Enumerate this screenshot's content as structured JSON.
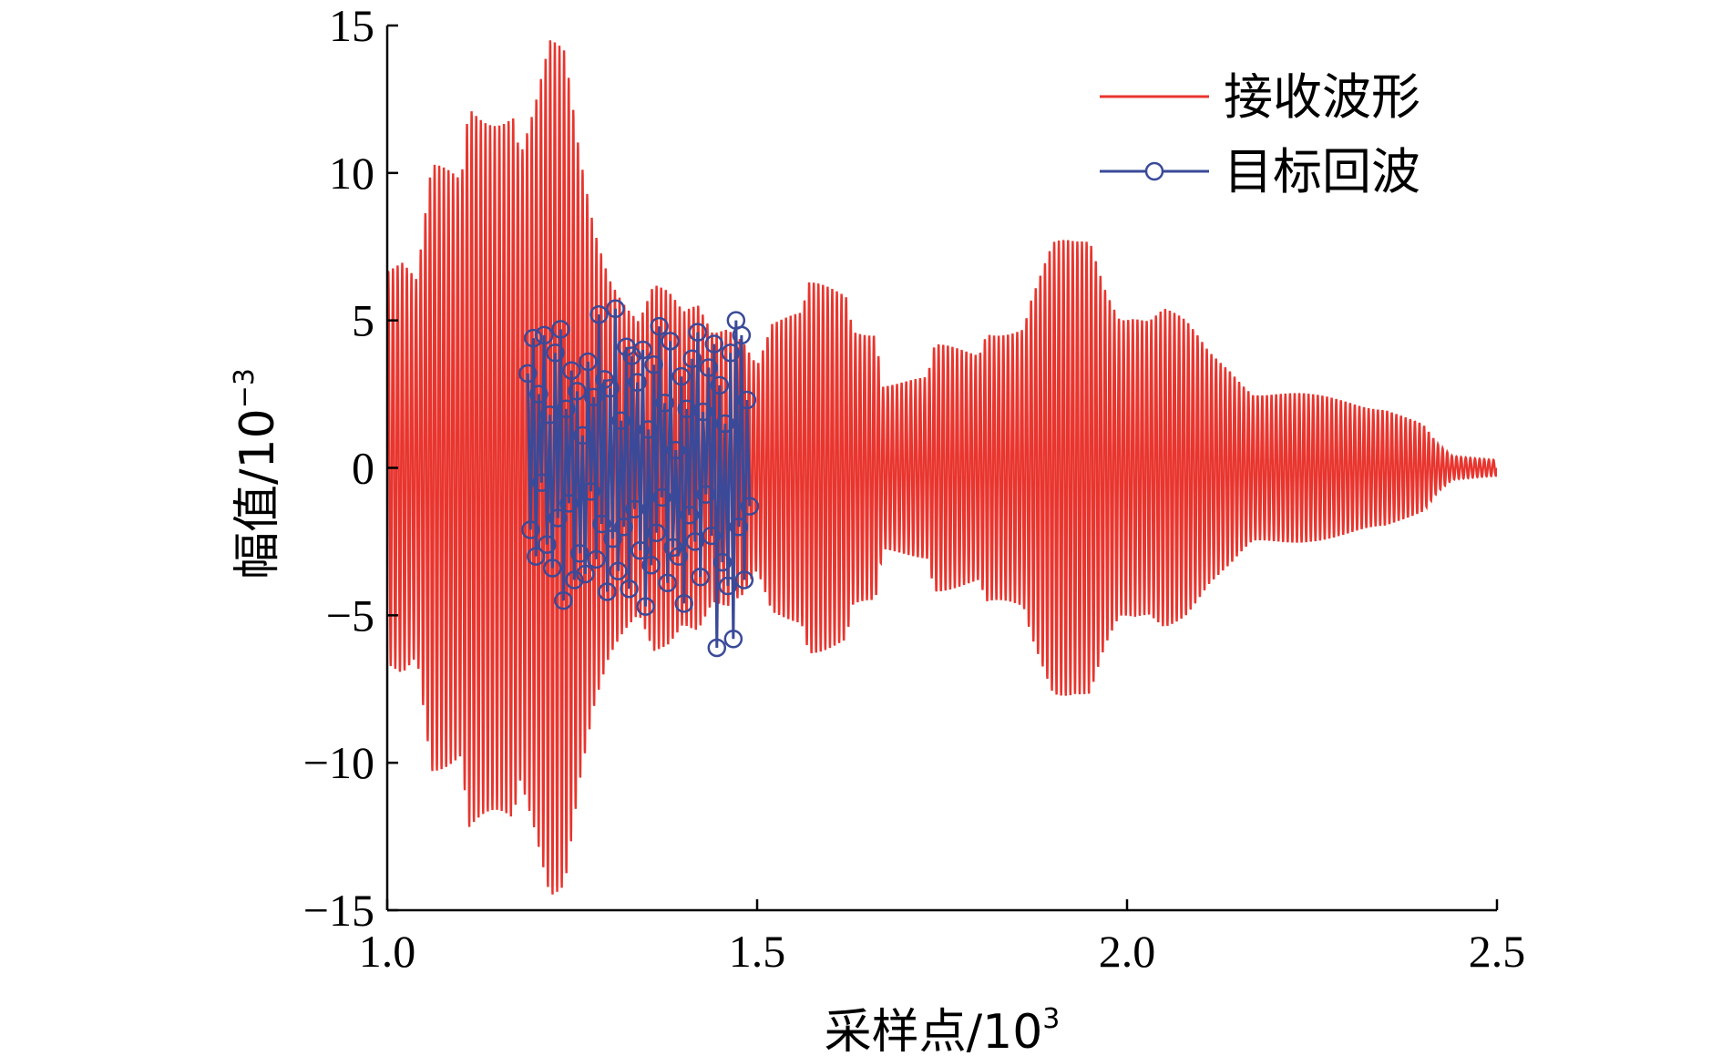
{
  "chart_data": {
    "type": "line",
    "xlabel": "采样点/10",
    "xlabel_sup": "3",
    "ylabel": "幅值/10",
    "ylabel_sup": "−3",
    "xlim": [
      1.0,
      2.5
    ],
    "ylim": [
      -15,
      15
    ],
    "x_ticks": [
      1.0,
      1.5,
      2.0,
      2.5
    ],
    "x_tick_labels": [
      "1.0",
      "1.5",
      "2.0",
      "2.5"
    ],
    "y_ticks": [
      15,
      10,
      5,
      0,
      -5,
      -10,
      -15
    ],
    "y_tick_labels": [
      "15",
      "10",
      "5",
      "0",
      "−5",
      "−10",
      "−15"
    ],
    "grid": false,
    "legend_position": "top-right",
    "series": [
      {
        "name": "接收波形",
        "color": "#e8352e",
        "style": "line",
        "oscillation_cycles_per_unit": 160,
        "envelope": [
          [
            1.0,
            7.4
          ],
          [
            1.02,
            7.4
          ],
          [
            1.04,
            6.5
          ],
          [
            1.06,
            10.3
          ],
          [
            1.1,
            10.3
          ],
          [
            1.11,
            13.2
          ],
          [
            1.17,
            13.2
          ],
          [
            1.18,
            11.5
          ],
          [
            1.2,
            12.8
          ],
          [
            1.22,
            14.6
          ],
          [
            1.24,
            14.2
          ],
          [
            1.26,
            11.0
          ],
          [
            1.28,
            8.7
          ],
          [
            1.3,
            7.2
          ],
          [
            1.32,
            6.3
          ],
          [
            1.34,
            5.5
          ],
          [
            1.36,
            6.6
          ],
          [
            1.38,
            6.1
          ],
          [
            1.4,
            5.3
          ],
          [
            1.42,
            5.6
          ],
          [
            1.44,
            4.8
          ],
          [
            1.46,
            5.2
          ],
          [
            1.48,
            4.9
          ],
          [
            1.5,
            3.9
          ],
          [
            1.52,
            5.3
          ],
          [
            1.56,
            5.3
          ],
          [
            1.57,
            6.3
          ],
          [
            1.62,
            6.3
          ],
          [
            1.63,
            5.1
          ],
          [
            1.66,
            5.1
          ],
          [
            1.67,
            3.1
          ],
          [
            1.73,
            3.1
          ],
          [
            1.74,
            4.2
          ],
          [
            1.8,
            4.2
          ],
          [
            1.81,
            5.1
          ],
          [
            1.86,
            5.1
          ],
          [
            1.87,
            6.0
          ],
          [
            1.9,
            7.7
          ],
          [
            1.93,
            7.8
          ],
          [
            1.95,
            8.1
          ],
          [
            1.97,
            6.7
          ],
          [
            1.99,
            5.7
          ],
          [
            2.01,
            5.7
          ],
          [
            2.03,
            5.4
          ],
          [
            2.05,
            5.6
          ],
          [
            2.08,
            5.0
          ],
          [
            2.11,
            4.1
          ],
          [
            2.14,
            3.6
          ],
          [
            2.17,
            2.8
          ],
          [
            2.2,
            2.7
          ],
          [
            2.25,
            2.5
          ],
          [
            2.3,
            2.4
          ],
          [
            2.35,
            2.2
          ],
          [
            2.4,
            1.5
          ],
          [
            2.42,
            0.8
          ],
          [
            2.44,
            0.4
          ],
          [
            2.5,
            0.3
          ]
        ]
      },
      {
        "name": "目标回波",
        "color": "#3a4a99",
        "style": "line-circle-markers",
        "x_start": 1.19,
        "x_end": 1.49,
        "values": [
          3.2,
          -2.1,
          4.4,
          -3.0,
          2.5,
          -0.5,
          4.5,
          -2.6,
          1.8,
          -3.4,
          3.9,
          -1.7,
          4.7,
          -4.5,
          2.0,
          -1.2,
          3.3,
          -3.8,
          2.6,
          -2.9,
          1.1,
          -3.6,
          3.6,
          -0.8,
          2.4,
          -3.1,
          5.2,
          -1.9,
          3.0,
          -4.2,
          2.7,
          -2.4,
          5.4,
          -3.5,
          1.6,
          -2.0,
          4.1,
          -4.1,
          3.8,
          -1.4,
          2.9,
          -2.8,
          4.0,
          -4.7,
          1.3,
          -3.3,
          3.5,
          -2.2,
          4.8,
          -1.0,
          2.2,
          -3.9,
          4.3,
          -2.7,
          0.6,
          -3.0,
          3.1,
          -4.6,
          2.0,
          -1.6,
          3.7,
          -2.5,
          4.6,
          -3.7,
          1.9,
          -0.9,
          3.4,
          -2.3,
          4.2,
          -6.1,
          2.8,
          -3.2,
          1.5,
          -4.0,
          3.9,
          -5.8,
          5.0,
          -2.0,
          4.5,
          -3.8,
          2.3,
          -1.3
        ]
      }
    ]
  }
}
